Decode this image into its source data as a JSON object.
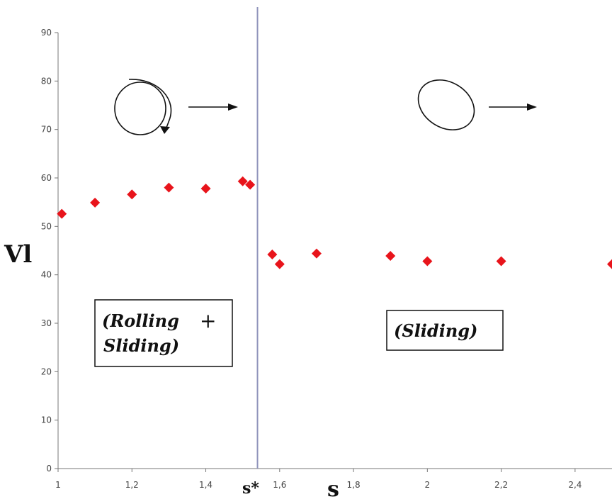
{
  "chart_data": {
    "type": "scatter",
    "x_axis": {
      "label": "s",
      "range": [
        1,
        2.5
      ],
      "ticks": [
        {
          "value": 1,
          "label": "1"
        },
        {
          "value": 1.2,
          "label": "1,2"
        },
        {
          "value": 1.4,
          "label": "1,4"
        },
        {
          "value": 1.6,
          "label": "1,6"
        },
        {
          "value": 1.8,
          "label": "1,8"
        },
        {
          "value": 2,
          "label": "2"
        },
        {
          "value": 2.2,
          "label": "2,2"
        },
        {
          "value": 2.4,
          "label": "2,4"
        }
      ]
    },
    "y_axis": {
      "label": "Vl",
      "range": [
        0,
        90
      ],
      "ticks": [
        {
          "value": 0,
          "label": "0"
        },
        {
          "value": 10,
          "label": "10"
        },
        {
          "value": 20,
          "label": "20"
        },
        {
          "value": 30,
          "label": "30"
        },
        {
          "value": 40,
          "label": "40"
        },
        {
          "value": 50,
          "label": "50"
        },
        {
          "value": 60,
          "label": "60"
        },
        {
          "value": 70,
          "label": "70"
        },
        {
          "value": 80,
          "label": "80"
        },
        {
          "value": 90,
          "label": "90"
        }
      ]
    },
    "threshold": {
      "x": 1.54,
      "label": "s*"
    },
    "regions": [
      {
        "lines": [
          "(Rolling",
          "Sliding)"
        ],
        "plus": "+"
      },
      {
        "lines": [
          "(Sliding)"
        ]
      }
    ],
    "series": [
      {
        "color": "#e8141b",
        "marker": "diamond",
        "points": [
          {
            "x": 1.01,
            "y": 52.6
          },
          {
            "x": 1.1,
            "y": 54.9
          },
          {
            "x": 1.2,
            "y": 56.6
          },
          {
            "x": 1.3,
            "y": 58.0
          },
          {
            "x": 1.4,
            "y": 57.8
          },
          {
            "x": 1.5,
            "y": 59.3
          },
          {
            "x": 1.52,
            "y": 58.6
          },
          {
            "x": 1.58,
            "y": 44.2
          },
          {
            "x": 1.6,
            "y": 42.2
          },
          {
            "x": 1.7,
            "y": 44.4
          },
          {
            "x": 1.9,
            "y": 43.9
          },
          {
            "x": 2.0,
            "y": 42.8
          },
          {
            "x": 2.2,
            "y": 42.8
          },
          {
            "x": 2.5,
            "y": 42.2
          }
        ]
      }
    ],
    "grid": false,
    "legend": "none",
    "colors": {
      "threshold_line": "#8f93bb",
      "axis": "#777777"
    }
  }
}
